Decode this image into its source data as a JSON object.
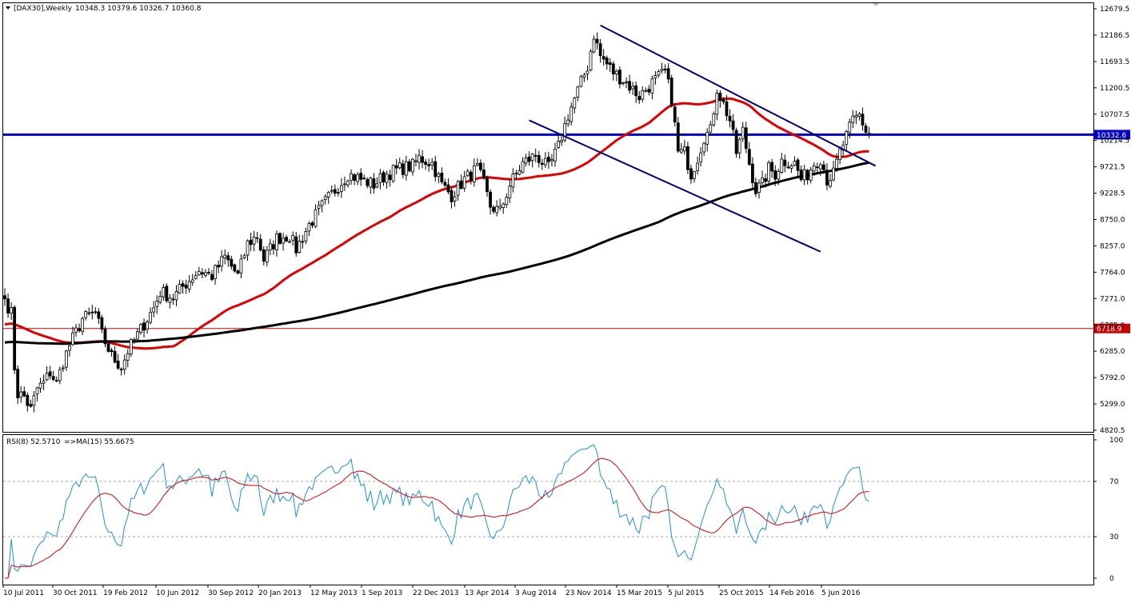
{
  "header": {
    "symbol_label": "[DAX30],Weekly",
    "ohlc_label": "10348.3 10379.6 10326.7 10360.8",
    "rsi_label": "RSI(8) 52.5710",
    "rsi_ma_label": "=>MA(15) 55.6675"
  },
  "chart_data": [
    {
      "type": "candlestick",
      "title": "[DAX30],Weekly",
      "ylim": [
        4820.5,
        12679.5
      ],
      "y_ticks": [
        "12679.5",
        "12186.5",
        "11693.5",
        "11200.5",
        "10707.5",
        "10214.5",
        "9721.5",
        "9228.5",
        "8750.0",
        "8257.0",
        "7764.0",
        "7271.0",
        "6785.0",
        "6285.0",
        "5792.0",
        "5299.0",
        "4820.5"
      ],
      "x_ticks": [
        "10 Jul 2011",
        "30 Oct 2011",
        "19 Feb 2012",
        "10 Jun 2012",
        "30 Sep 2012",
        "20 Jan 2013",
        "12 May 2013",
        "1 Sep 2013",
        "22 Dec 2013",
        "13 Apr 2014",
        "3 Aug 2014",
        "23 Nov 2014",
        "15 Mar 2015",
        "5 Jul 2015",
        "25 Oct 2015",
        "14 Feb 2016",
        "5 Jun 2016"
      ],
      "weeks": 268,
      "grid": false,
      "close_anchors": [
        [
          0,
          7270
        ],
        [
          2,
          7000
        ],
        [
          3,
          6000
        ],
        [
          4,
          5500
        ],
        [
          6,
          5450
        ],
        [
          8,
          5200
        ],
        [
          10,
          5600
        ],
        [
          12,
          5700
        ],
        [
          14,
          5900
        ],
        [
          16,
          5700
        ],
        [
          18,
          6100
        ],
        [
          20,
          6400
        ],
        [
          24,
          6900
        ],
        [
          28,
          7000
        ],
        [
          30,
          6600
        ],
        [
          33,
          6200
        ],
        [
          36,
          6000
        ],
        [
          38,
          6300
        ],
        [
          42,
          6700
        ],
        [
          46,
          7100
        ],
        [
          48,
          7400
        ],
        [
          52,
          7300
        ],
        [
          55,
          7500
        ],
        [
          60,
          7800
        ],
        [
          64,
          7700
        ],
        [
          68,
          8050
        ],
        [
          72,
          7700
        ],
        [
          75,
          8300
        ],
        [
          78,
          8450
        ],
        [
          80,
          8000
        ],
        [
          84,
          8400
        ],
        [
          88,
          8450
        ],
        [
          90,
          8200
        ],
        [
          94,
          8650
        ],
        [
          98,
          9000
        ],
        [
          102,
          9300
        ],
        [
          106,
          9600
        ],
        [
          110,
          9500
        ],
        [
          114,
          9400
        ],
        [
          118,
          9600
        ],
        [
          122,
          9700
        ],
        [
          126,
          9750
        ],
        [
          128,
          9900
        ],
        [
          132,
          9800
        ],
        [
          135,
          9400
        ],
        [
          138,
          9200
        ],
        [
          142,
          9500
        ],
        [
          146,
          9700
        ],
        [
          148,
          9400
        ],
        [
          150,
          9000
        ],
        [
          153,
          8900
        ],
        [
          156,
          9400
        ],
        [
          160,
          9800
        ],
        [
          164,
          9950
        ],
        [
          168,
          9700
        ],
        [
          171,
          10100
        ],
        [
          174,
          10700
        ],
        [
          176,
          11000
        ],
        [
          180,
          11600
        ],
        [
          182,
          12200
        ],
        [
          184,
          11800
        ],
        [
          188,
          11500
        ],
        [
          192,
          11300
        ],
        [
          196,
          11050
        ],
        [
          200,
          11300
        ],
        [
          202,
          11400
        ],
        [
          204,
          11500
        ],
        [
          206,
          11000
        ],
        [
          208,
          10000
        ],
        [
          210,
          10000
        ],
        [
          212,
          9600
        ],
        [
          214,
          9900
        ],
        [
          216,
          10300
        ],
        [
          218,
          10400
        ],
        [
          220,
          11200
        ],
        [
          222,
          10900
        ],
        [
          224,
          10600
        ],
        [
          226,
          10000
        ],
        [
          228,
          10400
        ],
        [
          230,
          9800
        ],
        [
          232,
          9300
        ],
        [
          234,
          9400
        ],
        [
          236,
          9700
        ],
        [
          238,
          9600
        ],
        [
          240,
          9850
        ],
        [
          244,
          9800
        ],
        [
          246,
          9500
        ],
        [
          248,
          9600
        ],
        [
          250,
          9800
        ],
        [
          252,
          9900
        ],
        [
          254,
          9500
        ],
        [
          256,
          9600
        ],
        [
          258,
          10000
        ],
        [
          260,
          10300
        ],
        [
          262,
          10600
        ],
        [
          264,
          10700
        ],
        [
          266,
          10400
        ],
        [
          267,
          10360.8
        ]
      ],
      "horizontal_levels": [
        {
          "name": "resistance-level",
          "value": 10332.6,
          "label": "10332.6",
          "color": "#0000cc"
        },
        {
          "name": "support-level",
          "value": 6718.9,
          "label": "6718.9",
          "color": "#cc0000"
        }
      ],
      "series": [
        {
          "value_type": "moving-average",
          "period": 50,
          "color": "#e00000"
        },
        {
          "value_type": "moving-average",
          "period": 200,
          "color": "#000000"
        }
      ],
      "trendlines": [
        {
          "name": "upper-channel-line",
          "from": [
            184,
            12370
          ],
          "to": [
            269,
            9750
          ],
          "color": "#00007a"
        },
        {
          "name": "lower-channel-line",
          "from": [
            162,
            10600
          ],
          "to": [
            252,
            8150
          ],
          "color": "#00007a"
        }
      ],
      "colors": {
        "bull_body": "#ffffff",
        "bear_body": "#000000",
        "wick": "#000000"
      }
    },
    {
      "type": "line",
      "title": "RSI(8) 52.5710 =>MA(15) 55.6675",
      "ylim": [
        0,
        100
      ],
      "y_ticks": [
        "100",
        "70",
        "30",
        "0"
      ],
      "levels": [
        70,
        30
      ],
      "series": [
        {
          "value_type": "rsi",
          "period": 8,
          "color": "#1e90e0"
        },
        {
          "value_type": "ma-of-rsi",
          "period": 15,
          "color": "#e00000"
        }
      ]
    }
  ]
}
